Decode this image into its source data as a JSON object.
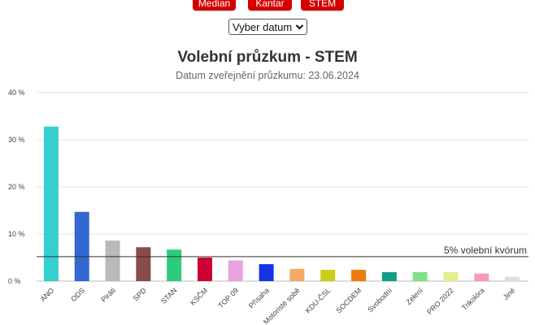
{
  "agency_buttons": [
    {
      "label": "Median"
    },
    {
      "label": "Kantar"
    },
    {
      "label": "STEM"
    }
  ],
  "date_select": {
    "label": "Vyber datum",
    "chevron_icon": "chevron-down-icon"
  },
  "chart_data": {
    "type": "bar",
    "title": "Volební průzkum - STEM",
    "subtitle": "Datum zveřejnění průzkumu: 23.06.2024",
    "ylim": [
      0,
      40
    ],
    "y_ticks": [
      {
        "value": 0,
        "label": "0 %"
      },
      {
        "value": 10,
        "label": "10 %"
      },
      {
        "value": 20,
        "label": "20 %"
      },
      {
        "value": 30,
        "label": "30 %"
      },
      {
        "value": 40,
        "label": "40 %"
      }
    ],
    "grid": true,
    "categories": [
      "ANO",
      "ODS",
      "Piráti",
      "SPD",
      "STAN",
      "KSČM",
      "TOP 09",
      "Přísaha",
      "Motoristé sobě",
      "KDU-ČSL",
      "SOCDEM",
      "Svobodní",
      "Zelení",
      "PRO 2022",
      "Trikolóra",
      "Jiné"
    ],
    "values": [
      32.8,
      14.7,
      8.6,
      7.2,
      6.7,
      5.0,
      4.4,
      3.6,
      2.6,
      2.4,
      2.4,
      1.9,
      1.9,
      1.9,
      1.6,
      0.9
    ],
    "colors": [
      "#36cfd1",
      "#3367d1",
      "#b9b9b9",
      "#8a4b4b",
      "#2ecc7a",
      "#cc0033",
      "#e8a3e0",
      "#1434e6",
      "#f5a962",
      "#cccc1a",
      "#f07b0c",
      "#0e9e87",
      "#7fe28a",
      "#e5ec8f",
      "#f59ab8",
      "#dddddd"
    ],
    "threshold": {
      "value": 5.2,
      "label": "5% volební kvórum"
    }
  }
}
